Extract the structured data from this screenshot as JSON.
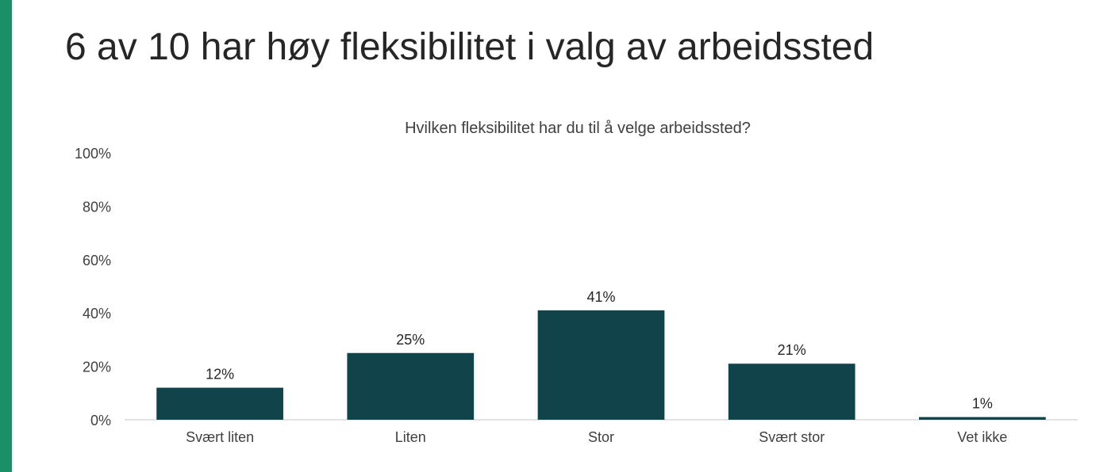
{
  "slide": {
    "title": "6 av 10 har høy fleksibilitet i valg av arbeidssted",
    "accent_color": "#1a8f68"
  },
  "chart_data": {
    "type": "bar",
    "title": "Hvilken fleksibilitet har du til å velge arbeidssted?",
    "categories": [
      "Svært liten",
      "Liten",
      "Stor",
      "Svært stor",
      "Vet ikke"
    ],
    "values": [
      12,
      25,
      41,
      21,
      1
    ],
    "data_labels": [
      "12%",
      "25%",
      "41%",
      "21%",
      "1%"
    ],
    "y_ticks": [
      0,
      20,
      40,
      60,
      80,
      100
    ],
    "y_tick_labels": [
      "0%",
      "20%",
      "40%",
      "60%",
      "80%",
      "100%"
    ],
    "ylim": [
      0,
      100
    ],
    "xlabel": "",
    "ylabel": "",
    "grid": false,
    "legend": "none",
    "bar_color": "#11444a",
    "axis_color": "#d9d9d9",
    "text_color": "#404040"
  }
}
